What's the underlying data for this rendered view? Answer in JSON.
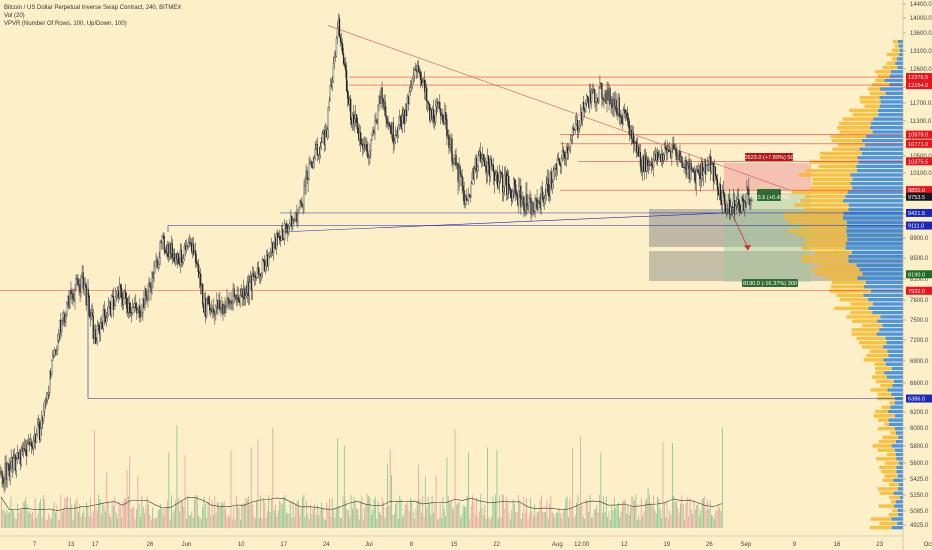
{
  "header": {
    "title": "Bitcoin / US Dollar Perpetual Inverse Swap Contract, 240, BITMEX",
    "vol": "Vol (20)",
    "vpvr": "VPVR (Number Of Rows, 100, Up/Down, 100)"
  },
  "chart_data": {
    "type": "candlestick",
    "x_ticks": [
      "7",
      "13",
      "17",
      "26",
      "Jun",
      "10",
      "17",
      "24",
      "Jul",
      "8",
      "15",
      "22",
      "Aug",
      "12:00",
      "12",
      "19",
      "26",
      "Sep",
      "9",
      "16",
      "23",
      "Oct"
    ],
    "y_ticks": [
      "14400.0",
      "14000.0",
      "13600.0",
      "13100.0",
      "12600.0",
      "12100.0",
      "11700.0",
      "11300.0",
      "10900.0",
      "10500.0",
      "10100.0",
      "9750.0",
      "9400.0",
      "9100.0",
      "8900.0",
      "8500.0",
      "8100.0",
      "7800.0",
      "7500.0",
      "7200.0",
      "6900.0",
      "6600.0",
      "6200.0",
      "6000.0",
      "5800.0",
      "5600.0",
      "5425.0",
      "5250.0",
      "5085.0",
      "4925.0"
    ],
    "price_labels": [
      {
        "text": "12376.5",
        "color": "#e8131b"
      },
      {
        "text": "12154.0",
        "color": "#e8131b"
      },
      {
        "text": "10979.0",
        "color": "#e8131b"
      },
      {
        "text": "10771.0",
        "color": "#e8131b"
      },
      {
        "text": "10375.5",
        "color": "#e8131b"
      },
      {
        "text": "9850.0",
        "color": "#e8131b"
      },
      {
        "text": "9753.5",
        "color": "#131722"
      },
      {
        "text": "9421.5",
        "color": "#1a27b8"
      },
      {
        "text": "9111.0",
        "color": "#1a27b8"
      },
      {
        "text": "8190.0",
        "color": "#1e6b25"
      },
      {
        "text": "7932.0",
        "color": "#e8131b"
      },
      {
        "text": "6386.0",
        "color": "#1a27b8"
      }
    ],
    "close_path": [
      [
        "May 1",
        5400
      ],
      [
        "May 5",
        5700
      ],
      [
        "May 8",
        6000
      ],
      [
        "May 11",
        7300
      ],
      [
        "May 13",
        7900
      ],
      [
        "May 15",
        8100
      ],
      [
        "May 17",
        7200
      ],
      [
        "May 18",
        7500
      ],
      [
        "May 21",
        7900
      ],
      [
        "May 24",
        7600
      ],
      [
        "May 26",
        8000
      ],
      [
        "May 28",
        8800
      ],
      [
        "May 31",
        8500
      ],
      [
        "Jun 2",
        8750
      ],
      [
        "Jun 4",
        7700
      ],
      [
        "Jun 7",
        7700
      ],
      [
        "Jun 10",
        7900
      ],
      [
        "Jun 13",
        8200
      ],
      [
        "Jun 16",
        8900
      ],
      [
        "Jun 19",
        9300
      ],
      [
        "Jun 22",
        10500
      ],
      [
        "Jun 24",
        11000
      ],
      [
        "Jun 26",
        13800
      ],
      [
        "Jun 28",
        11500
      ],
      [
        "Jul 1",
        10500
      ],
      [
        "Jul 3",
        11900
      ],
      [
        "Jul 5",
        11000
      ],
      [
        "Jul 7",
        11400
      ],
      [
        "Jul 9",
        12800
      ],
      [
        "Jul 11",
        11400
      ],
      [
        "Jul 13",
        11600
      ],
      [
        "Jul 15",
        10400
      ],
      [
        "Jul 17",
        9600
      ],
      [
        "Jul 19",
        10500
      ],
      [
        "Jul 22",
        10100
      ],
      [
        "Jul 25",
        9800
      ],
      [
        "Jul 28",
        9500
      ],
      [
        "Jul 31",
        10000
      ],
      [
        "Aug 3",
        10800
      ],
      [
        "Aug 6",
        11800
      ],
      [
        "Aug 8",
        12000
      ],
      [
        "Aug 10",
        11800
      ],
      [
        "Aug 12",
        11400
      ],
      [
        "Aug 15",
        10300
      ],
      [
        "Aug 17",
        10400
      ],
      [
        "Aug 20",
        10700
      ],
      [
        "Aug 23",
        10100
      ],
      [
        "Aug 26",
        10300
      ],
      [
        "Aug 29",
        9500
      ],
      [
        "Aug 31",
        9600
      ],
      [
        "Sep 2",
        9753
      ]
    ],
    "volume": "unlabeled histogram under price",
    "volume_profile": "horizontal histogram at right edge (blue up / yellow down)",
    "position_labels": {
      "stop": "10523.0 (+7.89%) 500",
      "entry": "9753.5 (+0.42%)",
      "target": "8190.0 (-16.37%) 300"
    }
  },
  "colors": {
    "background": "#fdf0c9",
    "up": "#26a69a",
    "down": "#ef5350",
    "red_line": "#e8131b",
    "blue_line": "#1a27b8",
    "vp_up": "#2e86de",
    "vp_down": "#f7b82a"
  }
}
